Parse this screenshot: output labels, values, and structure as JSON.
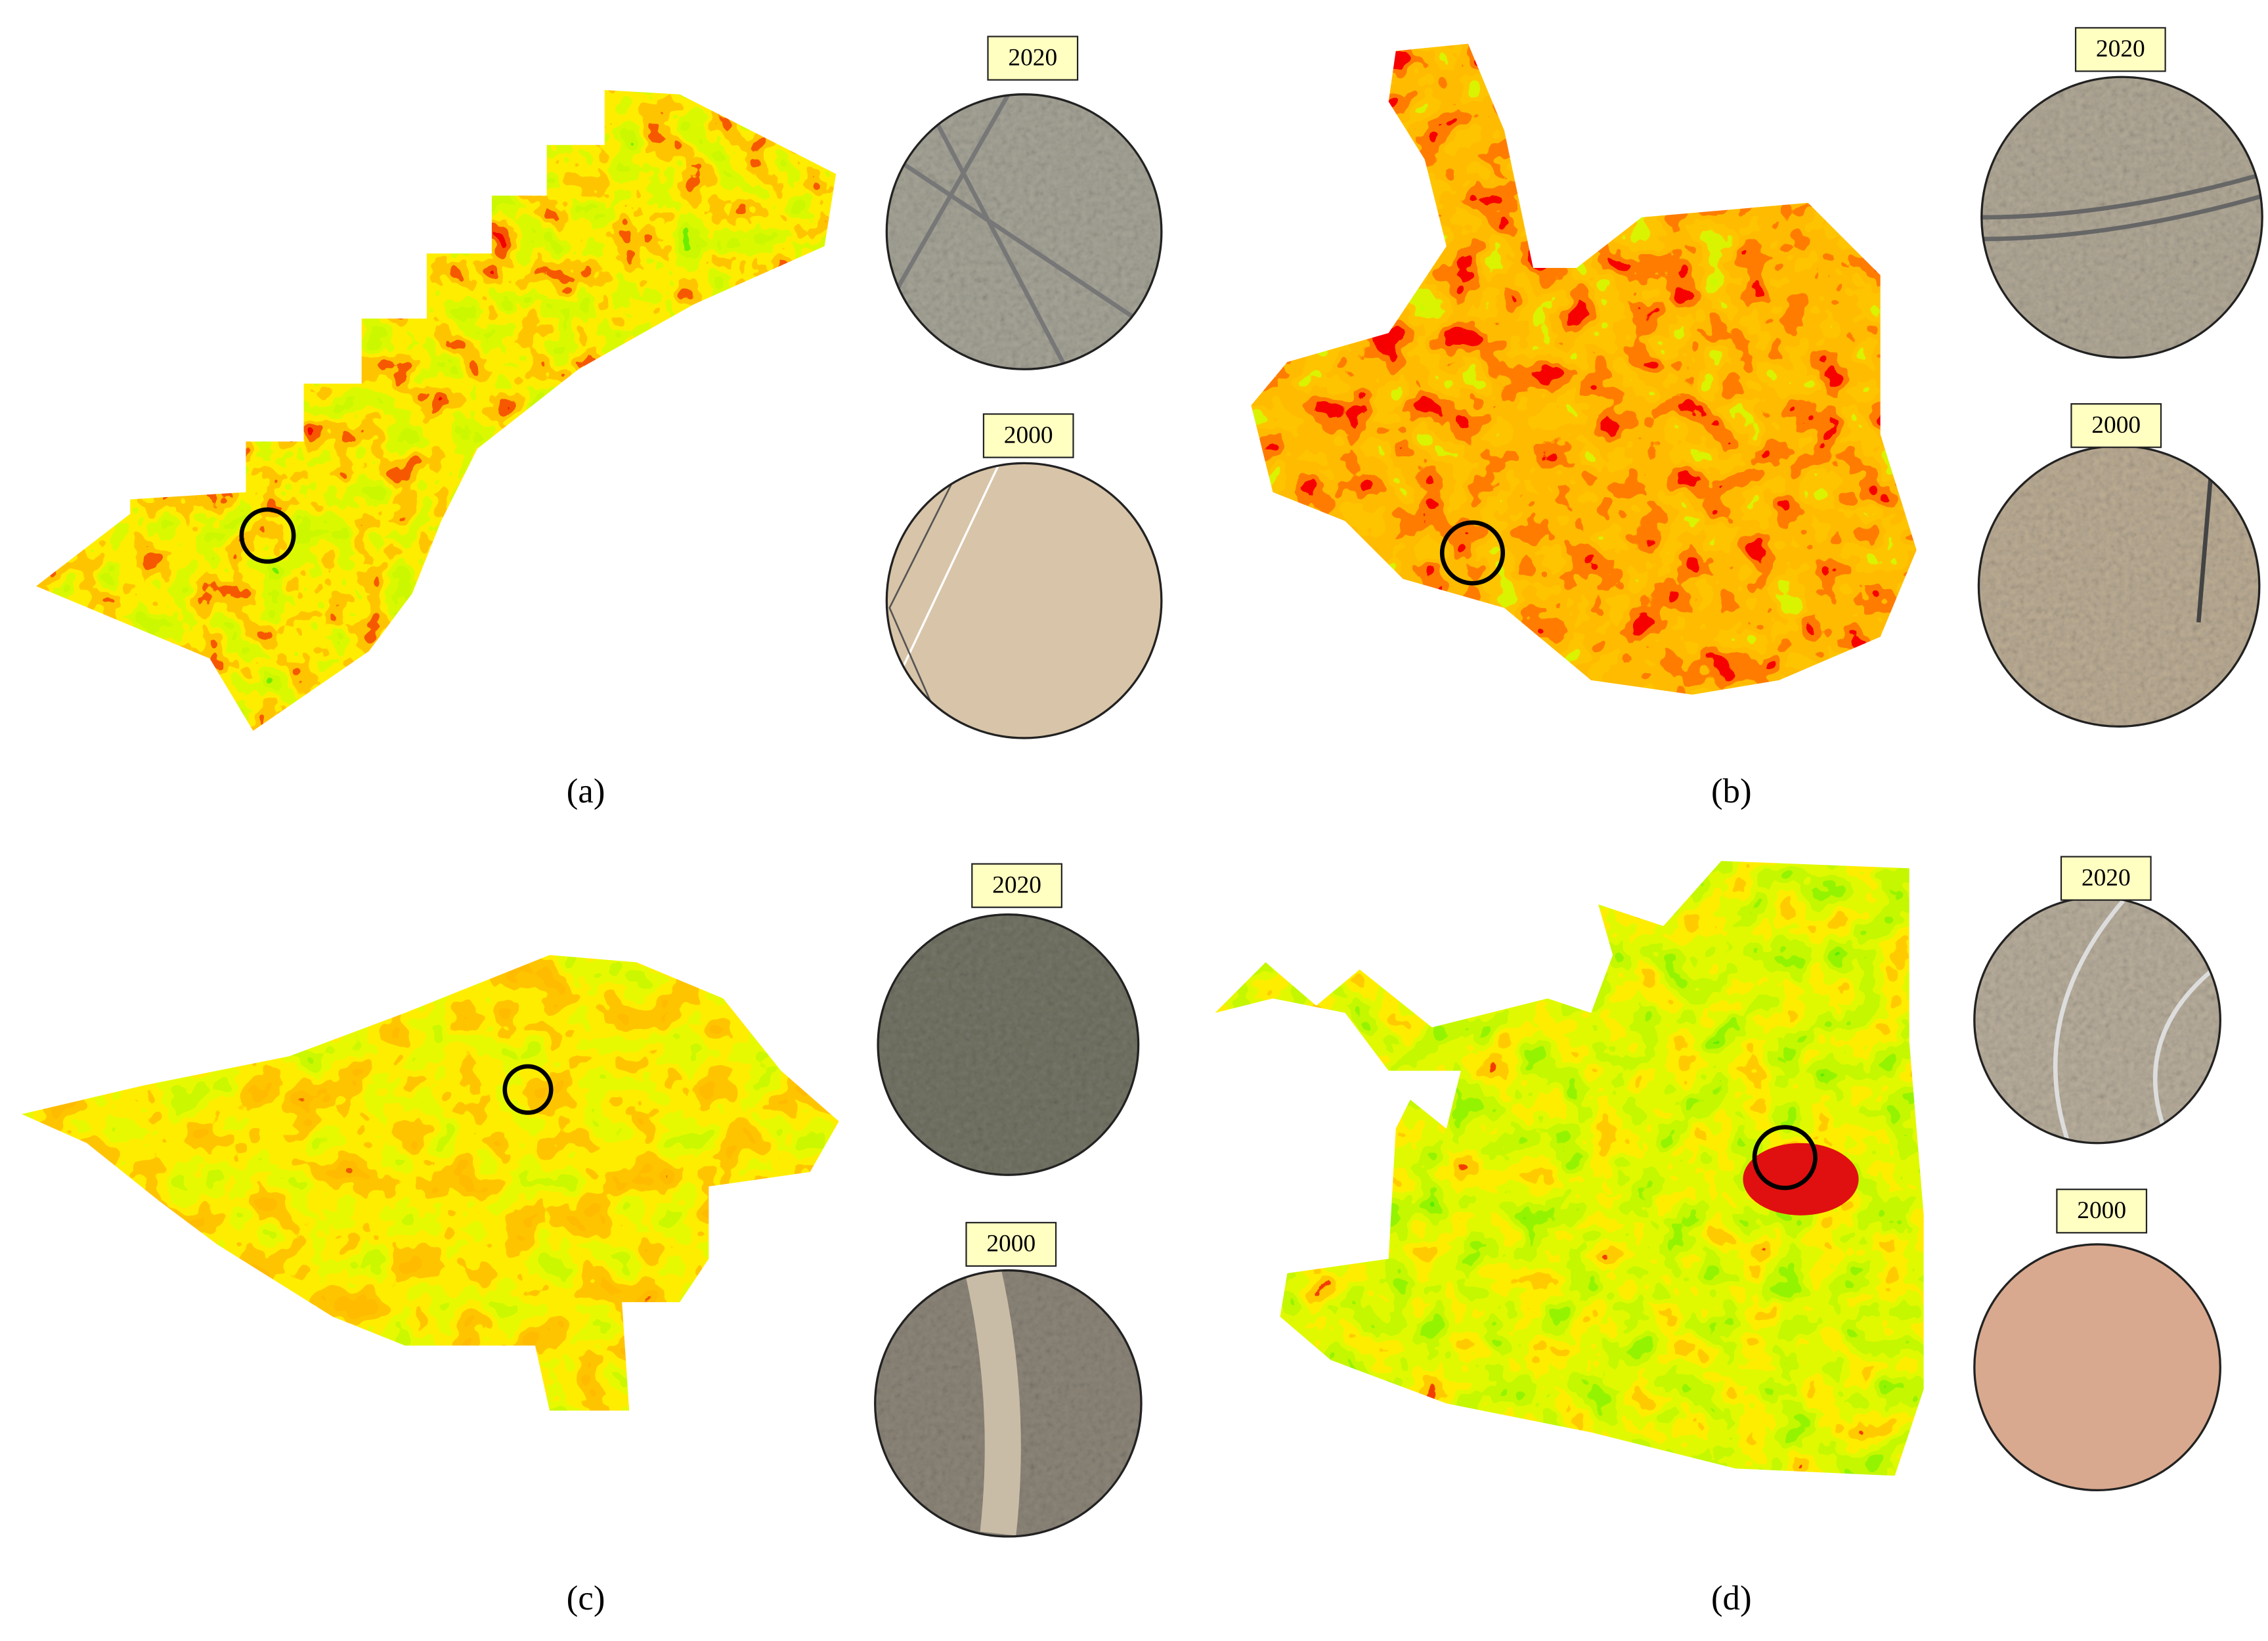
{
  "panels": [
    {
      "label": "(a)",
      "insets": [
        {
          "year": "2020"
        },
        {
          "year": "2000"
        }
      ]
    },
    {
      "label": "(b)",
      "insets": [
        {
          "year": "2020"
        },
        {
          "year": "2000"
        }
      ]
    },
    {
      "label": "(c)",
      "insets": [
        {
          "year": "2020"
        },
        {
          "year": "2000"
        }
      ]
    },
    {
      "label": "(d)",
      "insets": [
        {
          "year": "2020"
        },
        {
          "year": "2000"
        }
      ]
    }
  ]
}
